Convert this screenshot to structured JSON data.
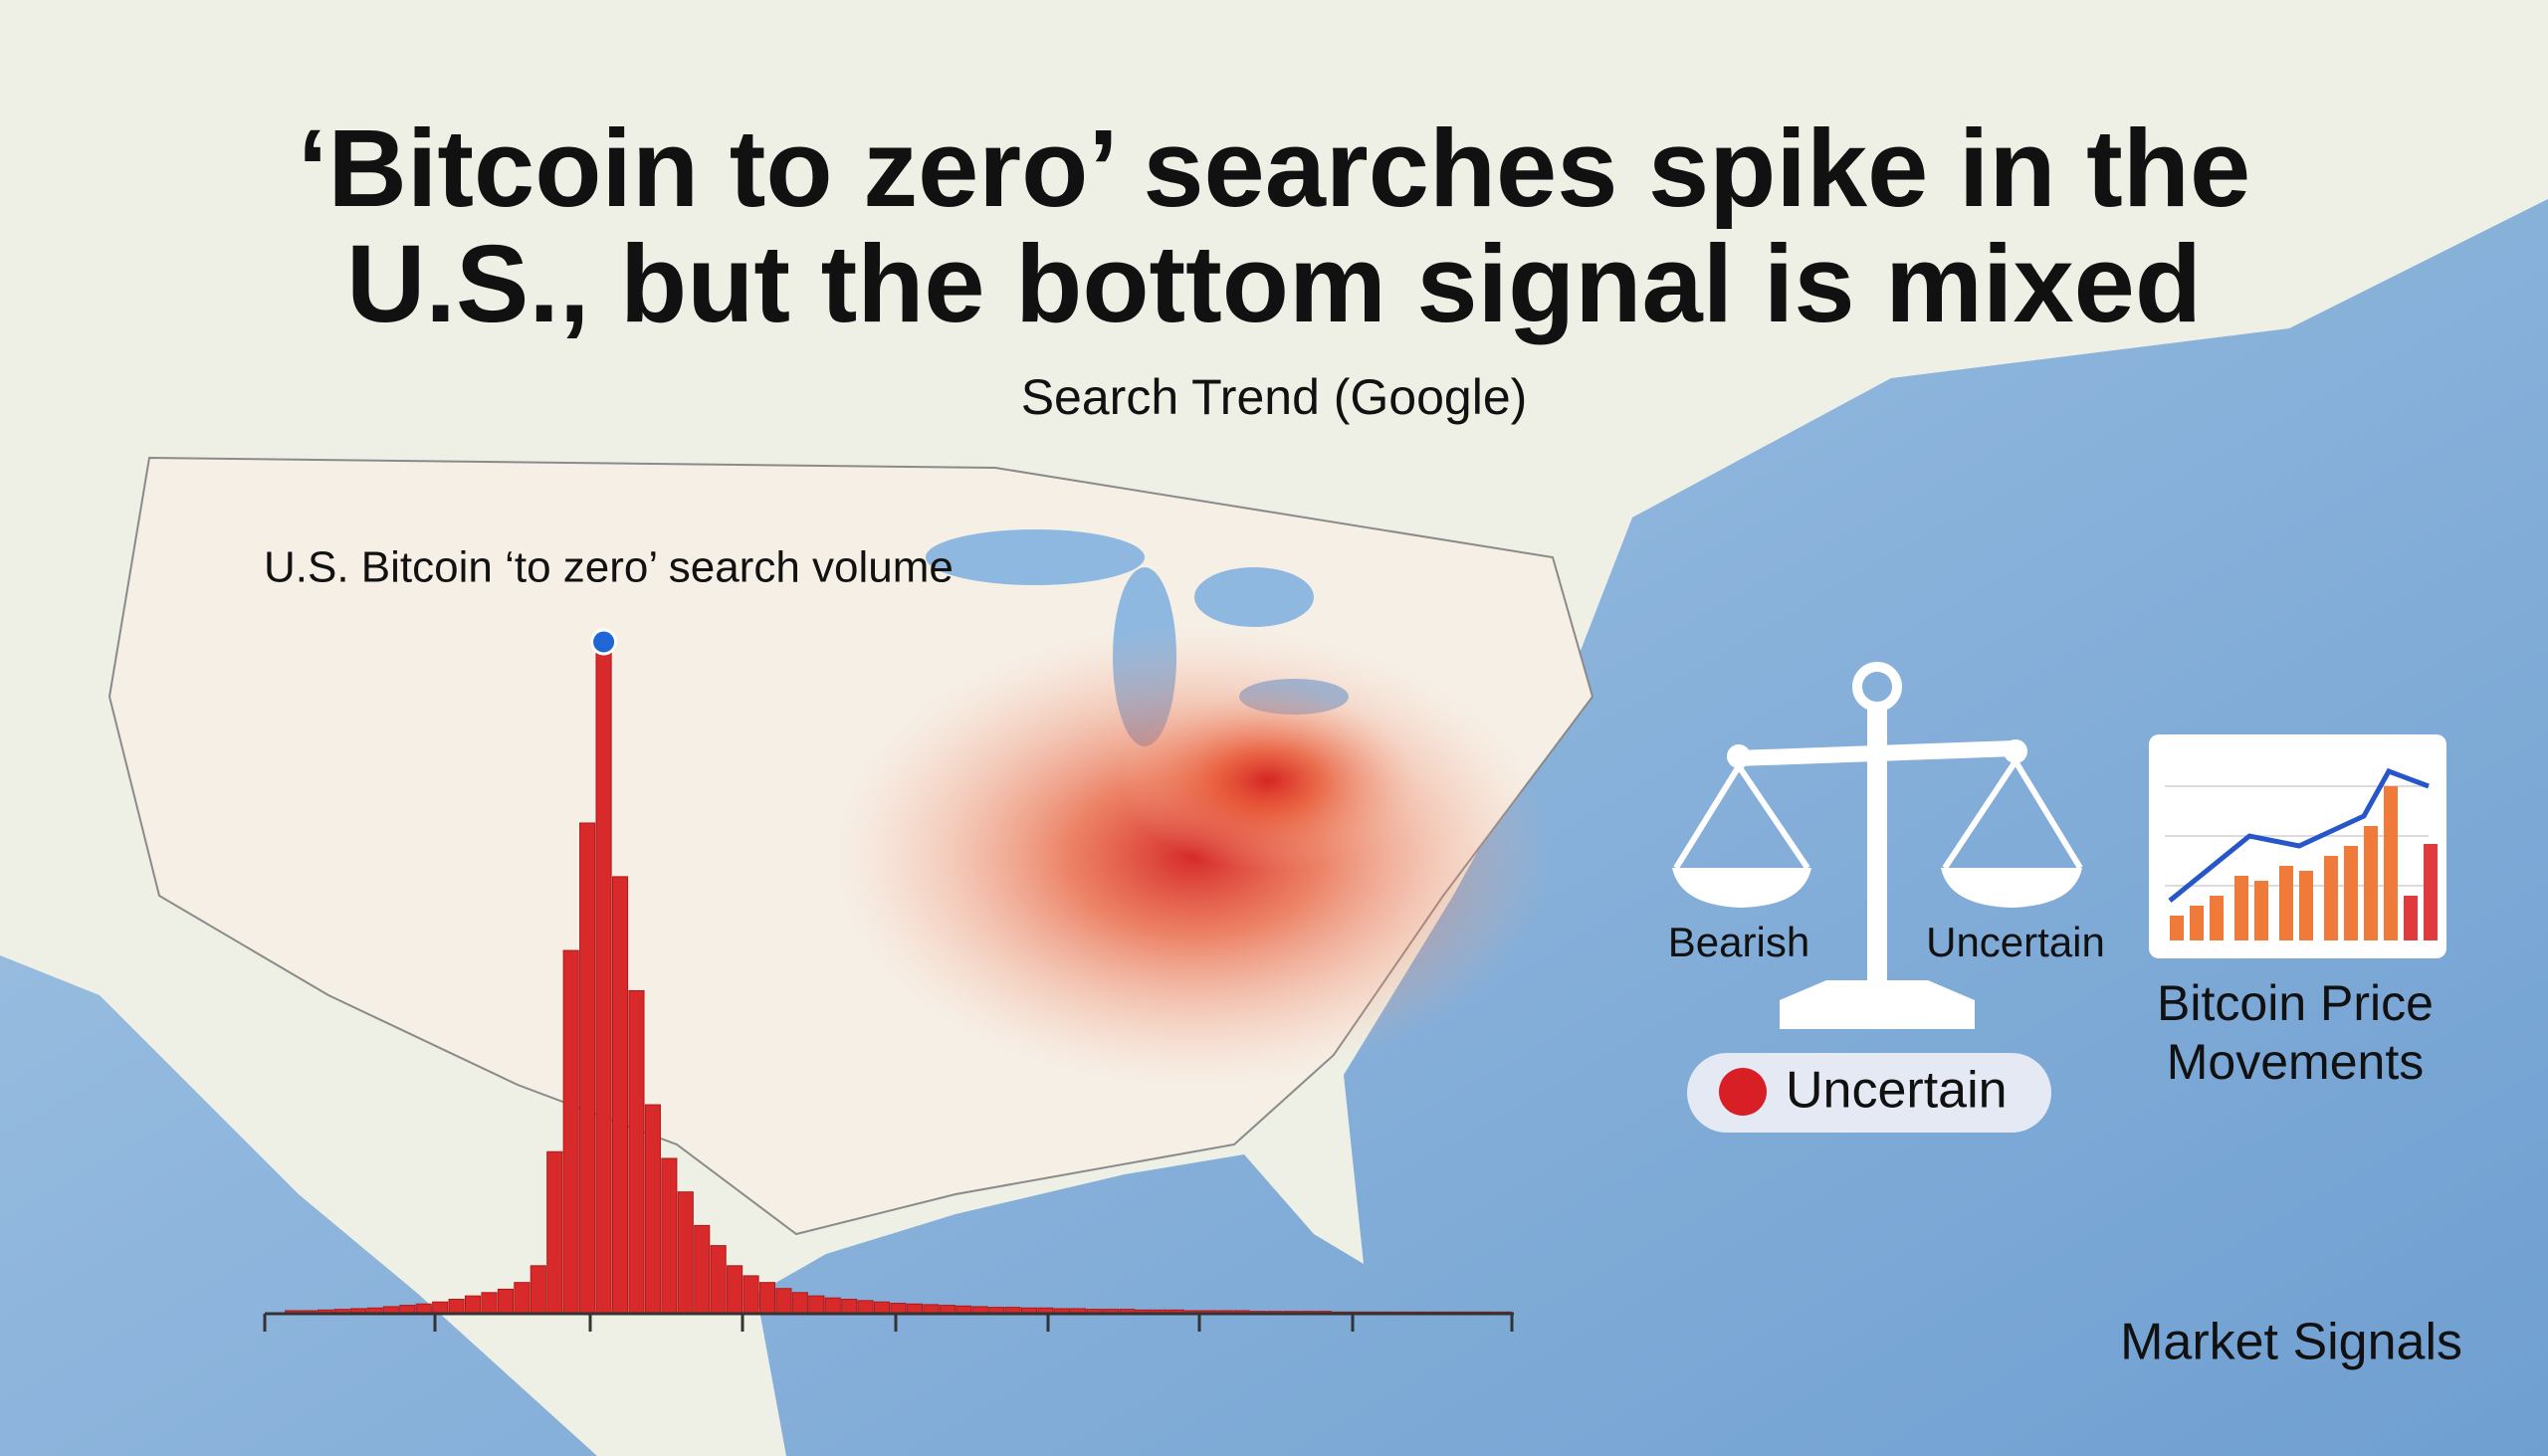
{
  "header": {
    "title_lines": [
      "‘Bitcoin to zero’ searches spike in the",
      "U.S., but the bottom signal is mixed"
    ],
    "subtitle": "Search Trend (Google)"
  },
  "chart_data": {
    "type": "bar",
    "title": "U.S. Bitcoin ‘to zero’ search volume",
    "color": "#d82a2a",
    "ylim": [
      0,
      100
    ],
    "values": [
      0.3,
      0.3,
      0.4,
      0.5,
      0.6,
      0.7,
      0.9,
      1.1,
      1.3,
      1.6,
      2,
      2.5,
      3,
      3.5,
      4.5,
      7,
      24,
      54,
      73,
      100,
      65,
      48,
      31,
      23,
      18,
      13,
      10,
      7,
      5.5,
      4.5,
      3.6,
      3,
      2.5,
      2.2,
      2,
      1.8,
      1.6,
      1.4,
      1.3,
      1.2,
      1.1,
      1,
      0.9,
      0.8,
      0.8,
      0.7,
      0.7,
      0.6,
      0.6,
      0.5,
      0.5,
      0.5,
      0.4,
      0.4,
      0.4,
      0.3,
      0.3,
      0.3,
      0.3,
      0.2,
      0.2,
      0.2,
      0.2,
      0.2,
      0.1,
      0.1,
      0.1,
      0.1,
      0.1,
      0.1,
      0.1,
      0.1,
      0.1,
      0.1,
      0.1
    ]
  },
  "scale": {
    "left_label": "Bearish",
    "right_label": "Uncertain",
    "status": "Uncertain"
  },
  "price_card": {
    "label_lines": [
      "Bitcoin Price",
      "Movements"
    ]
  },
  "footer": "Market Signals"
}
